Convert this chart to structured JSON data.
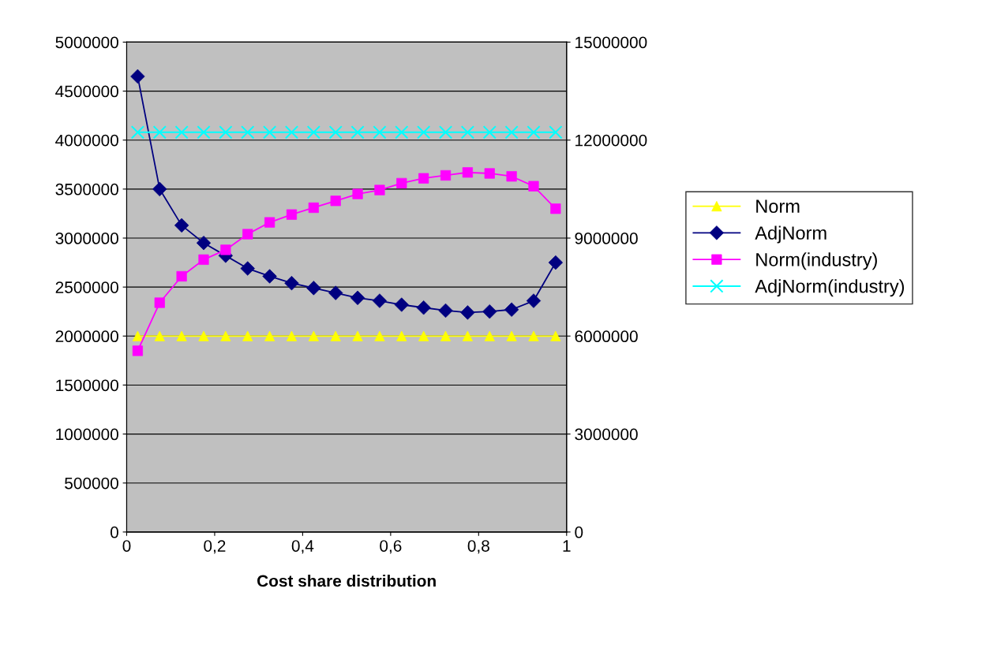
{
  "chart_data": {
    "type": "line",
    "xlabel": "Cost share distribution",
    "x": [
      0.025,
      0.075,
      0.125,
      0.175,
      0.225,
      0.275,
      0.325,
      0.375,
      0.425,
      0.475,
      0.525,
      0.575,
      0.625,
      0.675,
      0.725,
      0.775,
      0.825,
      0.875,
      0.925,
      0.975
    ],
    "series": [
      {
        "name": "Norm",
        "color": "#ffff00",
        "marker": "triangle",
        "values": [
          2000000,
          2000000,
          2000000,
          2000000,
          2000000,
          2000000,
          2000000,
          2000000,
          2000000,
          2000000,
          2000000,
          2000000,
          2000000,
          2000000,
          2000000,
          2000000,
          2000000,
          2000000,
          2000000,
          2000000
        ]
      },
      {
        "name": "AdjNorm",
        "color": "#000080",
        "marker": "diamond",
        "values": [
          4650000,
          3500000,
          3130000,
          2950000,
          2820000,
          2690000,
          2610000,
          2540000,
          2490000,
          2440000,
          2390000,
          2360000,
          2320000,
          2290000,
          2260000,
          2240000,
          2250000,
          2270000,
          2360000,
          2750000
        ]
      },
      {
        "name": "Norm(industry)",
        "color": "#ff00ff",
        "marker": "square",
        "axis": "y2",
        "values": [
          5550000,
          7020000,
          7830000,
          8340000,
          8640000,
          9120000,
          9480000,
          9720000,
          9930000,
          10140000,
          10350000,
          10470000,
          10680000,
          10830000,
          10920000,
          11010000,
          10980000,
          10890000,
          10590000,
          9900000
        ]
      },
      {
        "name": "AdjNorm(industry)",
        "color": "#00ffff",
        "marker": "cross",
        "axis": "y2",
        "values": [
          12240000,
          12240000,
          12240000,
          12240000,
          12240000,
          12240000,
          12240000,
          12240000,
          12240000,
          12240000,
          12240000,
          12240000,
          12240000,
          12240000,
          12240000,
          12240000,
          12240000,
          12240000,
          12240000,
          12240000
        ]
      }
    ],
    "xlim": [
      0,
      1
    ],
    "xticks": [
      0,
      {
        "value": 0.2,
        "label": "0,2"
      },
      {
        "value": 0.4,
        "label": "0,4"
      },
      {
        "value": 0.6,
        "label": "0,6"
      },
      {
        "value": 0.8,
        "label": "0,8"
      },
      1
    ],
    "ylim": [
      0,
      5000000
    ],
    "yticks": [
      0,
      500000,
      1000000,
      1500000,
      2000000,
      2500000,
      3000000,
      3500000,
      4000000,
      4500000,
      5000000
    ],
    "y2lim": [
      0,
      15000000
    ],
    "y2ticks": [
      0,
      3000000,
      6000000,
      9000000,
      12000000,
      15000000
    ],
    "grid": "y",
    "legend": "right",
    "line_style": "solid"
  }
}
